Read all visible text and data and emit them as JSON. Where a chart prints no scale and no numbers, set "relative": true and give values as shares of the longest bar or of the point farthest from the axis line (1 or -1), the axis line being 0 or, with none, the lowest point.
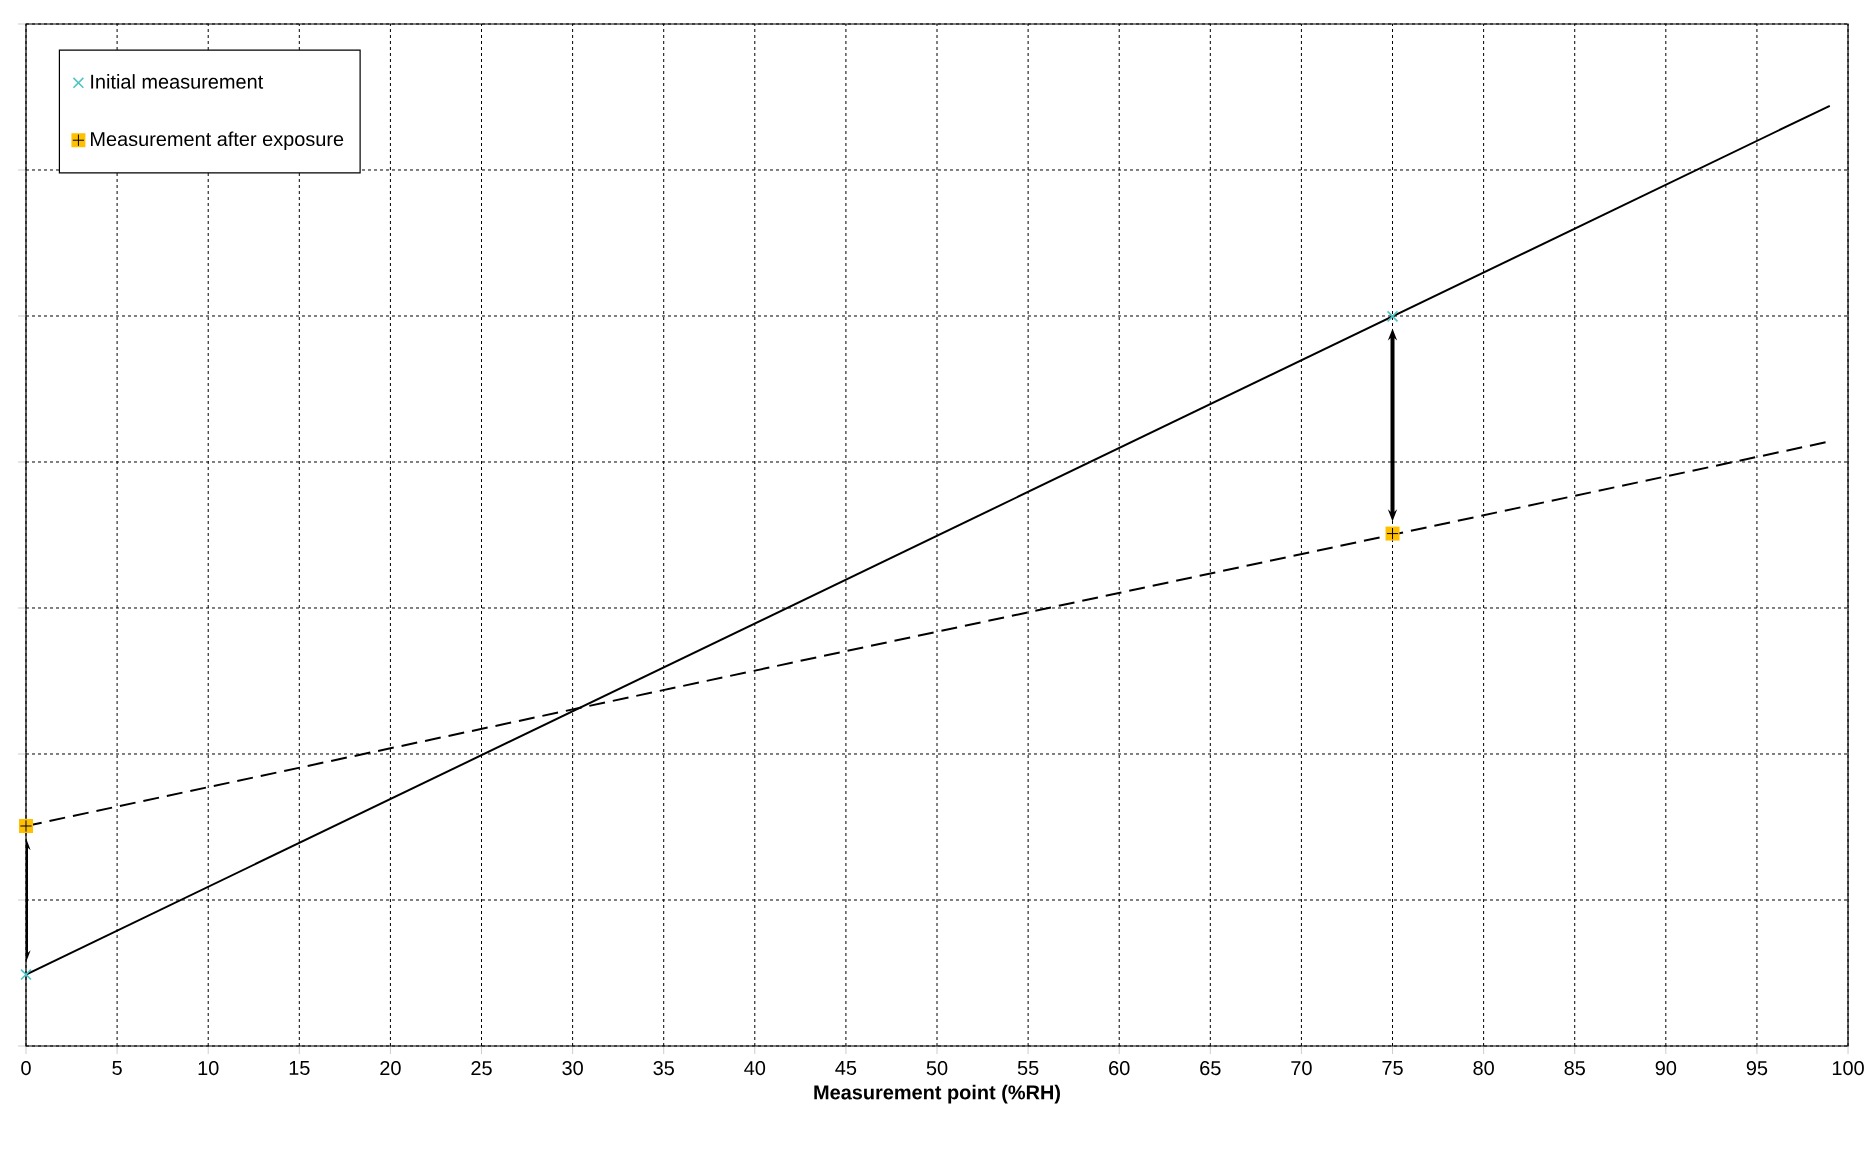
{
  "chart_data": {
    "type": "scatter",
    "xlabel": "Measurement point (%RH)",
    "xlim": [
      0,
      100
    ],
    "xticks": [
      0,
      5,
      10,
      15,
      20,
      25,
      30,
      35,
      40,
      45,
      50,
      55,
      60,
      65,
      70,
      75,
      80,
      85,
      90,
      95,
      100
    ],
    "relative": true,
    "grid": true,
    "legend": "top left",
    "tick_labels": "x",
    "series": [
      {
        "name": "Initial measurement",
        "type": "scatter",
        "marker": "cross",
        "color": "#4fc4c4",
        "x": [
          0,
          75
        ],
        "values": [
          0.076,
          0.776
        ]
      },
      {
        "name": "Measurement after exposure",
        "type": "scatter",
        "marker": "square",
        "color": "#ffc000",
        "x": [
          0,
          75
        ],
        "values": [
          0.234,
          0.545
        ]
      },
      {
        "type": "line",
        "color": "#000000",
        "line_style": "solid",
        "x": [
          0,
          99
        ],
        "values": [
          0.076,
          1
        ]
      },
      {
        "type": "line",
        "color": "#000000",
        "line_style": "dashed",
        "x": [
          0,
          99
        ],
        "values": [
          0.234,
          0.643
        ]
      }
    ]
  }
}
